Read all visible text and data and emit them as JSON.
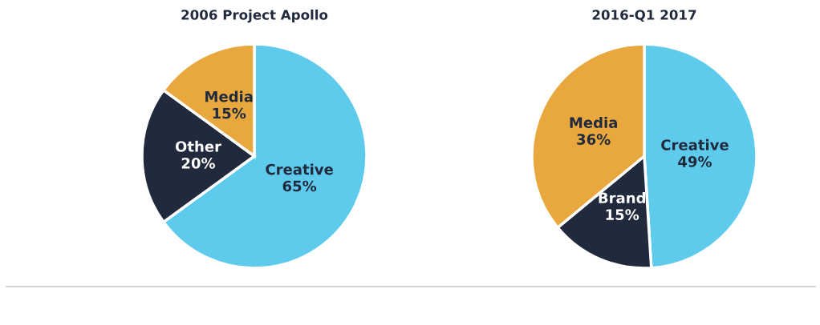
{
  "chart_data": [
    {
      "type": "pie",
      "title": "2006 Project Apollo",
      "categories": [
        "Creative",
        "Other",
        "Media"
      ],
      "values": [
        65,
        20,
        15
      ],
      "colors": [
        "#5fcbec",
        "#212a3d",
        "#e8a83e"
      ],
      "data_labels": true,
      "value_labels": [
        "65%",
        "20%",
        "15%"
      ],
      "legend": false
    },
    {
      "type": "pie",
      "title": "2016-Q1 2017",
      "categories": [
        "Creative",
        "Brand",
        "Media"
      ],
      "values": [
        49,
        15,
        36
      ],
      "colors": [
        "#5fcbec",
        "#212a3d",
        "#e8a83e"
      ],
      "data_labels": true,
      "value_labels": [
        "49%",
        "15%",
        "36%"
      ],
      "legend": false
    }
  ]
}
